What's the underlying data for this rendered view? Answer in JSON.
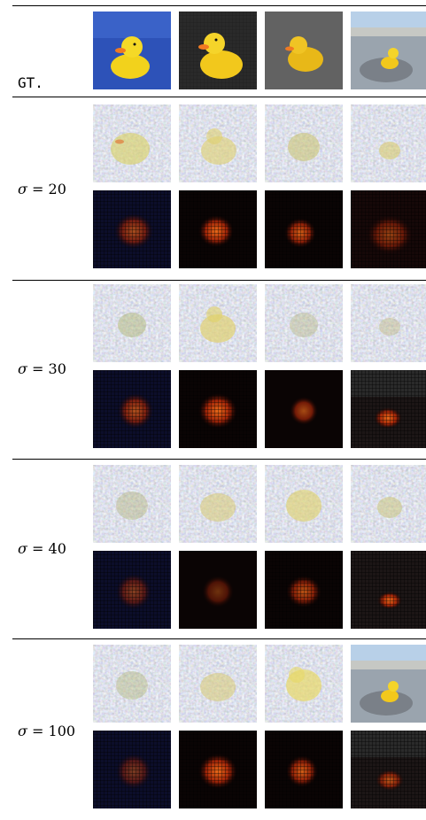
{
  "gt_label": "GT.",
  "rows": [
    {
      "sigma_symbol": "σ",
      "sigma_value": "= 20"
    },
    {
      "sigma_symbol": "σ",
      "sigma_value": "= 30"
    },
    {
      "sigma_symbol": "σ",
      "sigma_value": "= 40"
    },
    {
      "sigma_symbol": "σ",
      "sigma_value": "= 100"
    }
  ],
  "colors": {
    "duck_yellow": "#f2d21c",
    "beak_orange": "#f07a22",
    "blue_towel": "#2d52b8",
    "noise_gray": "#8e98a8",
    "dark_bg": "#0a0606",
    "heat_red": "#c03010"
  }
}
